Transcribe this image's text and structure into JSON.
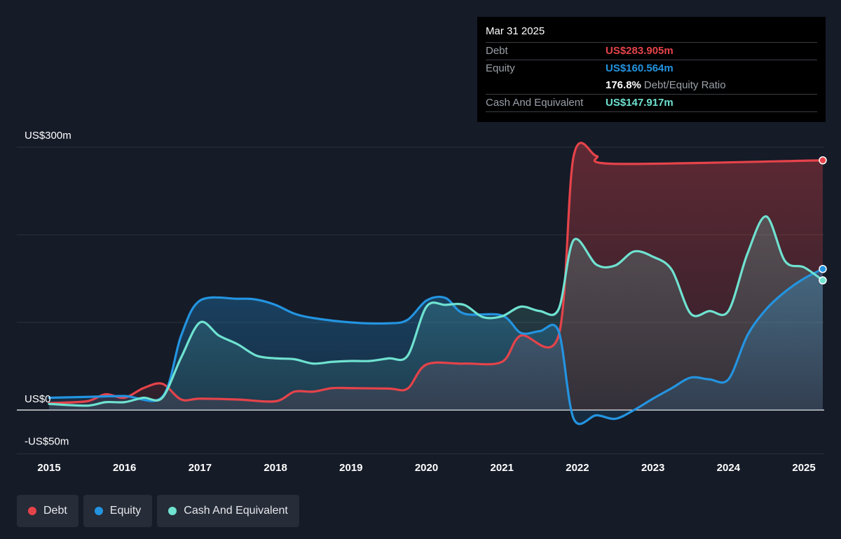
{
  "tooltip": {
    "date": "Mar 31 2025",
    "debt_label": "Debt",
    "debt_value": "US$283.905m",
    "equity_label": "Equity",
    "equity_value": "US$160.564m",
    "ratio_value": "176.8%",
    "ratio_label": "Debt/Equity Ratio",
    "cash_label": "Cash And Equivalent",
    "cash_value": "US$147.917m"
  },
  "legend": [
    {
      "name": "Debt",
      "color": "#e5434a"
    },
    {
      "name": "Equity",
      "color": "#2394e0"
    },
    {
      "name": "Cash And Equivalent",
      "color": "#6fe2d0"
    }
  ],
  "chart_data": {
    "type": "area",
    "title": "",
    "xlabel": "",
    "ylabel": "",
    "y_tick_labels": [
      "US$300m",
      "US$0",
      "-US$50m"
    ],
    "y_ticks": [
      300,
      0,
      -50
    ],
    "ylim": [
      -50,
      300
    ],
    "xlim": [
      2015.0,
      2025.25
    ],
    "x_tick_labels": [
      "2015",
      "2016",
      "2017",
      "2018",
      "2019",
      "2020",
      "2021",
      "2022",
      "2023",
      "2024",
      "2025"
    ],
    "x_ticks": [
      2015,
      2016,
      2017,
      2018,
      2019,
      2020,
      2021,
      2022,
      2023,
      2024,
      2025
    ],
    "grid": true,
    "legend_position": "bottom-left",
    "series": [
      {
        "name": "Debt",
        "color": "#e5434a",
        "points": [
          [
            2015.0,
            8
          ],
          [
            2015.5,
            10
          ],
          [
            2015.75,
            18
          ],
          [
            2016.0,
            14
          ],
          [
            2016.25,
            25
          ],
          [
            2016.5,
            30
          ],
          [
            2016.75,
            12
          ],
          [
            2017.0,
            13
          ],
          [
            2017.5,
            12
          ],
          [
            2018.0,
            10
          ],
          [
            2018.25,
            21
          ],
          [
            2018.5,
            21
          ],
          [
            2018.75,
            25
          ],
          [
            2019.0,
            25
          ],
          [
            2019.5,
            24.5
          ],
          [
            2019.75,
            24.5
          ],
          [
            2020.0,
            52
          ],
          [
            2020.5,
            53
          ],
          [
            2021.0,
            55
          ],
          [
            2021.25,
            85
          ],
          [
            2021.75,
            85
          ],
          [
            2021.95,
            290
          ],
          [
            2022.25,
            290
          ],
          [
            2022.5,
            281
          ],
          [
            2025.25,
            285
          ]
        ]
      },
      {
        "name": "Equity",
        "color": "#2394e0",
        "points": [
          [
            2015.0,
            14
          ],
          [
            2015.5,
            15
          ],
          [
            2016.0,
            16
          ],
          [
            2016.5,
            15
          ],
          [
            2016.75,
            85
          ],
          [
            2017.0,
            125
          ],
          [
            2017.5,
            127
          ],
          [
            2017.75,
            126
          ],
          [
            2018.0,
            120
          ],
          [
            2018.25,
            110
          ],
          [
            2018.5,
            105
          ],
          [
            2019.0,
            100
          ],
          [
            2019.5,
            99
          ],
          [
            2019.75,
            103
          ],
          [
            2020.0,
            125
          ],
          [
            2020.25,
            128
          ],
          [
            2020.5,
            110
          ],
          [
            2021.0,
            108
          ],
          [
            2021.25,
            88
          ],
          [
            2021.5,
            90
          ],
          [
            2021.75,
            90
          ],
          [
            2021.95,
            -10
          ],
          [
            2022.25,
            -6
          ],
          [
            2022.5,
            -10
          ],
          [
            2022.75,
            0
          ],
          [
            2023.0,
            13
          ],
          [
            2023.25,
            25
          ],
          [
            2023.5,
            37
          ],
          [
            2023.75,
            35
          ],
          [
            2024.0,
            35
          ],
          [
            2024.25,
            85
          ],
          [
            2024.5,
            115
          ],
          [
            2024.75,
            135
          ],
          [
            2025.0,
            150
          ],
          [
            2025.25,
            161
          ]
        ]
      },
      {
        "name": "Cash And Equivalent",
        "color": "#6fe2d0",
        "points": [
          [
            2015.0,
            7
          ],
          [
            2015.5,
            5
          ],
          [
            2015.75,
            9
          ],
          [
            2016.0,
            9
          ],
          [
            2016.25,
            14
          ],
          [
            2016.5,
            14
          ],
          [
            2016.75,
            60
          ],
          [
            2017.0,
            100
          ],
          [
            2017.25,
            85
          ],
          [
            2017.5,
            75
          ],
          [
            2017.75,
            62
          ],
          [
            2018.0,
            59
          ],
          [
            2018.25,
            58
          ],
          [
            2018.5,
            53
          ],
          [
            2018.75,
            55
          ],
          [
            2019.0,
            56
          ],
          [
            2019.25,
            56
          ],
          [
            2019.5,
            59
          ],
          [
            2019.75,
            62
          ],
          [
            2020.0,
            118
          ],
          [
            2020.25,
            120
          ],
          [
            2020.5,
            120
          ],
          [
            2020.75,
            106
          ],
          [
            2021.0,
            107
          ],
          [
            2021.25,
            118
          ],
          [
            2021.5,
            113
          ],
          [
            2021.75,
            115
          ],
          [
            2021.95,
            194
          ],
          [
            2022.25,
            166
          ],
          [
            2022.5,
            165
          ],
          [
            2022.75,
            181
          ],
          [
            2023.0,
            175
          ],
          [
            2023.25,
            160
          ],
          [
            2023.5,
            110
          ],
          [
            2023.75,
            113
          ],
          [
            2024.0,
            113
          ],
          [
            2024.25,
            178
          ],
          [
            2024.5,
            221
          ],
          [
            2024.75,
            170
          ],
          [
            2025.0,
            163
          ],
          [
            2025.25,
            148
          ]
        ]
      }
    ]
  }
}
